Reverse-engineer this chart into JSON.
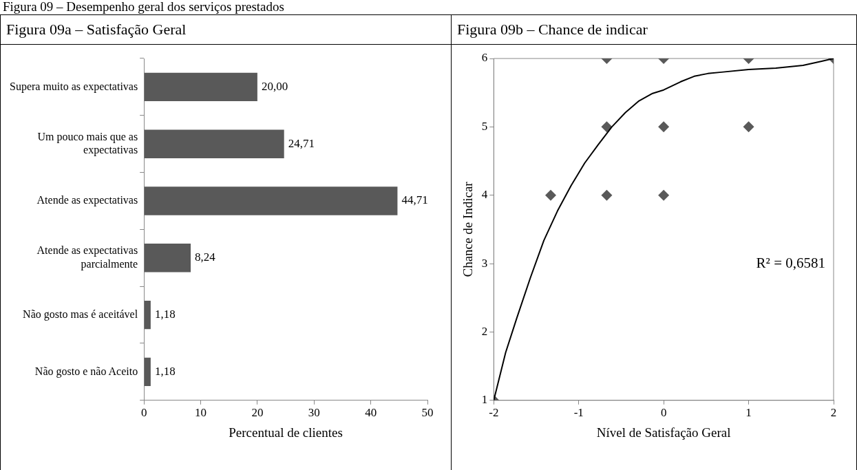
{
  "chart_data": [
    {
      "type": "bar",
      "title": "Figura 09a – Satisfação Geral",
      "orientation": "horizontal",
      "xlabel": "Percentual de clientes",
      "categories": [
        "Supera muito as expectativas",
        "Um pouco mais que as expectativas",
        "Atende as expectativas",
        "Atende as expectativas parcialmente",
        "Não gosto mas é aceitável",
        "Não gosto e não Aceito"
      ],
      "values": [
        20.0,
        24.71,
        44.71,
        8.24,
        1.18,
        1.18
      ],
      "value_labels": [
        "20,00",
        "24,71",
        "44,71",
        "8,24",
        "1,18",
        "1,18"
      ],
      "color": "#595959",
      "xlim": [
        0,
        50
      ],
      "xticks": [
        0,
        10,
        20,
        30,
        40,
        50
      ],
      "grid": false,
      "legend": false,
      "annotations": [
        "Figura 09 – Desempenho geral dos serviços prestados"
      ]
    },
    {
      "type": "scatter",
      "title": "Figura 09b – Chance de indicar",
      "xlabel": "Nível de Satisfação Geral",
      "ylabel": "Chance de Indicar",
      "series": [
        {
          "type": "scatter",
          "color": "#595959",
          "marker": "diamond",
          "x": [
            -2,
            -1.33,
            -0.67,
            -0.67,
            -0.67,
            0,
            0,
            0,
            1,
            1,
            2
          ],
          "values": [
            1,
            4,
            6,
            5,
            4,
            6,
            5,
            4,
            6,
            5,
            6
          ]
        },
        {
          "type": "line",
          "color": "#000000",
          "marker": "none",
          "line_style": "solid",
          "x": [
            -2,
            -1.86,
            -1.73,
            -1.57,
            -1.41,
            -1.25,
            -1.09,
            -0.93,
            -0.77,
            -0.61,
            -0.45,
            -0.29,
            -0.13,
            0,
            0.2,
            0.36,
            0.52,
            0.68,
            1,
            1.32,
            1.64,
            1.86,
            2
          ],
          "values": [
            1,
            1.7,
            2.2,
            2.79,
            3.34,
            3.77,
            4.14,
            4.47,
            4.74,
            5.0,
            5.21,
            5.38,
            5.49,
            5.54,
            5.66,
            5.74,
            5.78,
            5.8,
            5.84,
            5.86,
            5.9,
            5.96,
            6
          ]
        }
      ],
      "xlim": [
        -2,
        2
      ],
      "xticks": [
        -2,
        -1,
        0,
        1,
        2
      ],
      "ylim": [
        1,
        6
      ],
      "yticks": [
        1,
        2,
        3,
        4,
        5,
        6
      ],
      "grid": false,
      "legend": false,
      "annotations": [
        "R² = 0,6581"
      ]
    }
  ]
}
